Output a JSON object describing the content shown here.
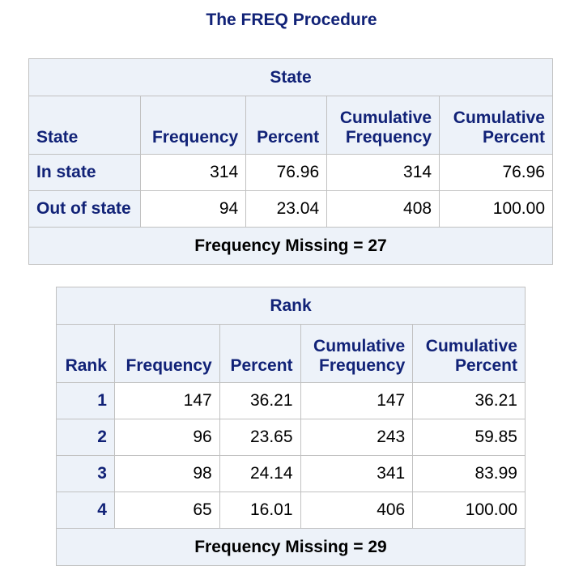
{
  "title": "The FREQ Procedure",
  "tables": [
    {
      "caption": "State",
      "headers": [
        "State",
        "Frequency",
        "Percent",
        "Cumulative Frequency",
        "Cumulative Percent"
      ],
      "rows": [
        {
          "label": "In state",
          "frequency": "314",
          "percent": "76.96",
          "cum_frequency": "314",
          "cum_percent": "76.96"
        },
        {
          "label": "Out of state",
          "frequency": "94",
          "percent": "23.04",
          "cum_frequency": "408",
          "cum_percent": "100.00"
        }
      ],
      "footer": "Frequency Missing = 27"
    },
    {
      "caption": "Rank",
      "headers": [
        "Rank",
        "Frequency",
        "Percent",
        "Cumulative Frequency",
        "Cumulative Percent"
      ],
      "rows": [
        {
          "label": "1",
          "frequency": "147",
          "percent": "36.21",
          "cum_frequency": "147",
          "cum_percent": "36.21"
        },
        {
          "label": "2",
          "frequency": "96",
          "percent": "23.65",
          "cum_frequency": "243",
          "cum_percent": "59.85"
        },
        {
          "label": "3",
          "frequency": "98",
          "percent": "24.14",
          "cum_frequency": "341",
          "cum_percent": "83.99"
        },
        {
          "label": "4",
          "frequency": "65",
          "percent": "16.01",
          "cum_frequency": "406",
          "cum_percent": "100.00"
        }
      ],
      "footer": "Frequency Missing = 29"
    }
  ]
}
